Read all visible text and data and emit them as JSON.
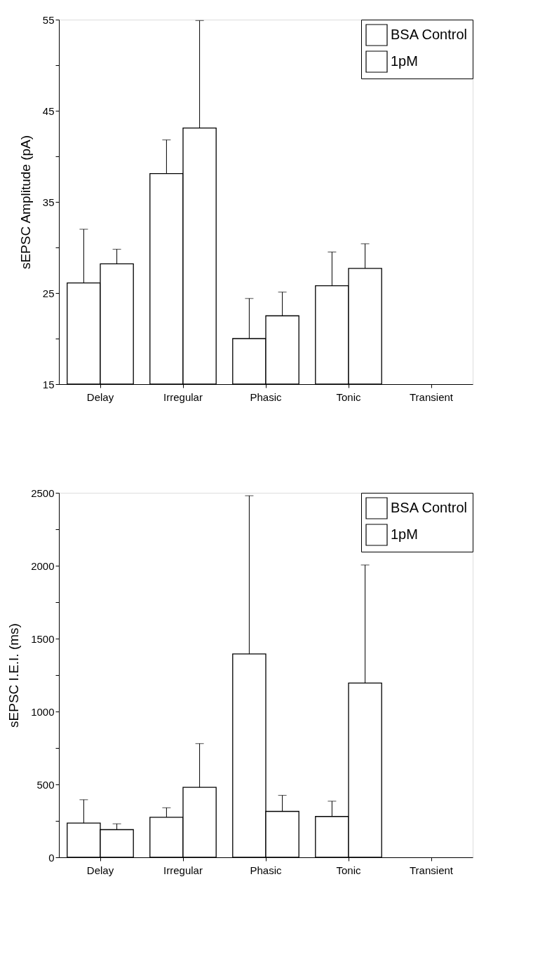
{
  "chart_data": [
    {
      "type": "bar",
      "ylabel": "sEPSC Amplitude (pA)",
      "categories": [
        "Delay",
        "Irregular",
        "Phasic",
        "Tonic",
        "Transient"
      ],
      "series": [
        {
          "name": "BSA Control",
          "color": "#ffffff",
          "values": [
            26.1,
            38.1,
            20.0,
            25.8,
            null
          ],
          "errors": [
            [
              26.1,
              32.0
            ],
            [
              38.1,
              41.8
            ],
            [
              20.0,
              24.4
            ],
            [
              25.8,
              29.5
            ],
            null
          ]
        },
        {
          "name": "1pM",
          "color": "#ffffff",
          "values": [
            28.2,
            43.1,
            22.5,
            27.7,
            null
          ],
          "errors": [
            [
              28.2,
              29.8
            ],
            [
              43.1,
              54.9
            ],
            [
              22.5,
              25.1
            ],
            [
              27.7,
              30.4
            ],
            null
          ]
        }
      ],
      "ylim": [
        15,
        55
      ],
      "yticks": [
        15,
        {
          "value": 20,
          "label": null
        },
        25,
        {
          "value": 30,
          "label": null
        },
        35,
        {
          "value": 40,
          "label": null
        },
        45,
        {
          "value": 50,
          "label": null
        },
        55
      ],
      "grid": false,
      "legend": "top right"
    },
    {
      "type": "bar",
      "ylabel": "sEPSC I.E.I. (ms)",
      "categories": [
        "Delay",
        "Irregular",
        "Phasic",
        "Tonic",
        "Transient"
      ],
      "series": [
        {
          "name": "BSA Control",
          "color": "#ffffff",
          "values": [
            235,
            275,
            1395,
            280,
            null
          ],
          "errors": [
            [
              235,
              395
            ],
            [
              275,
              340
            ],
            [
              1395,
              2480
            ],
            [
              280,
              385
            ],
            null
          ]
        },
        {
          "name": "1pM",
          "color": "#ffffff",
          "values": [
            190,
            480,
            315,
            1195,
            null
          ],
          "errors": [
            [
              190,
              230
            ],
            [
              480,
              780
            ],
            [
              315,
              425
            ],
            [
              1195,
              2005
            ],
            null
          ]
        }
      ],
      "ylim": [
        0,
        2500
      ],
      "yticks": [
        0,
        {
          "value": 250,
          "label": null
        },
        500,
        {
          "value": 750,
          "label": null
        },
        1000,
        {
          "value": 1250,
          "label": null
        },
        1500,
        {
          "value": 1750,
          "label": null
        },
        2000,
        {
          "value": 2250,
          "label": null
        },
        2500
      ],
      "grid": false,
      "legend": "top right"
    }
  ]
}
